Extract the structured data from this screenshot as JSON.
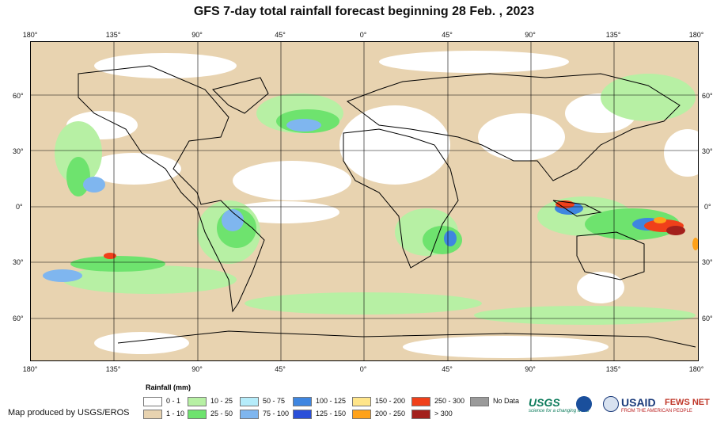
{
  "title": "GFS 7-day total rainfall forecast beginning 28 Feb. , 2023",
  "lon_labels": [
    "180°",
    "135°",
    "90°",
    "45°",
    "0°",
    "45°",
    "90°",
    "135°",
    "180°"
  ],
  "lat_labels": [
    "60°",
    "30°",
    "0°",
    "30°",
    "60°"
  ],
  "legend": {
    "title": "Rainfall (mm)",
    "items": [
      {
        "label": "0 - 1",
        "color": "#ffffff"
      },
      {
        "label": "1 - 10",
        "color": "#e8d3b0"
      },
      {
        "label": "10 - 25",
        "color": "#b7f0a4"
      },
      {
        "label": "25 - 50",
        "color": "#6ee36e"
      },
      {
        "label": "50 - 75",
        "color": "#b5ecfa"
      },
      {
        "label": "75 - 100",
        "color": "#7fb6ef"
      },
      {
        "label": "100 - 125",
        "color": "#3f86e0"
      },
      {
        "label": "125 - 150",
        "color": "#2a4fd9"
      },
      {
        "label": "150 - 200",
        "color": "#ffe58a"
      },
      {
        "label": "200 - 250",
        "color": "#ffa21a"
      },
      {
        "label": "250 - 300",
        "color": "#f0401a"
      },
      {
        "label": "> 300",
        "color": "#a3201c"
      },
      {
        "label": "No Data",
        "color": "#9a9a9a"
      }
    ]
  },
  "credit": "Map produced by USGS/EROS",
  "logos": {
    "usgs": "USGS",
    "usgs_tag": "science for a changing world",
    "usaid": "USAID",
    "usaid_tag": "FROM THE AMERICAN PEOPLE",
    "fews": "FEWS NET"
  }
}
